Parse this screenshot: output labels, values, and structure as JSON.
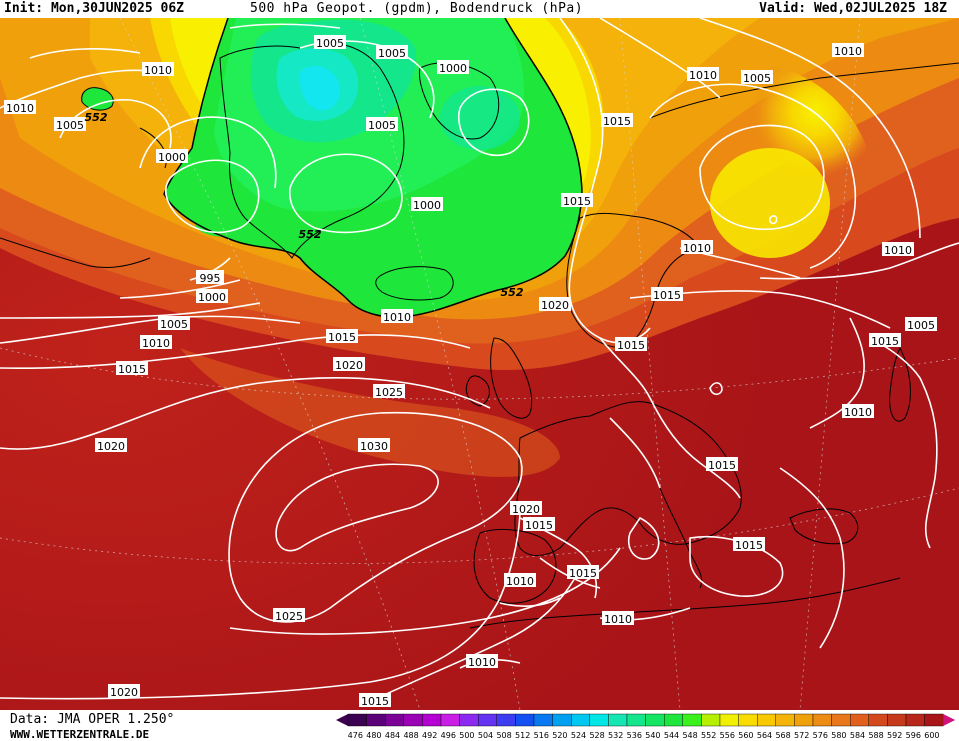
{
  "header": {
    "init": "Init: Mon,30JUN2025 06Z",
    "title": "500 hPa Geopot. (gpdm), Bodendruck (hPa)",
    "valid": "Valid: Wed,02JUL2025 18Z"
  },
  "footer": {
    "data_source": "Data: JMA OPER 1.250°",
    "website": "WWW.WETTERZENTRALE.DE"
  },
  "colors": {
    "dark_red": "#a81418",
    "red": "#c62c1c",
    "red_orange": "#d84a1e",
    "orange": "#ec8a12",
    "yellow_orange": "#f4b20a",
    "yellow": "#f8e800",
    "green": "#1ee63a",
    "green_light": "#22ee6a",
    "teal": "#14e8c4",
    "cyan": "#14e6f0",
    "isobar": "#ffffff",
    "coastline": "#000000"
  },
  "color_scale": {
    "labels": [
      "476",
      "480",
      "484",
      "488",
      "492",
      "496",
      "500",
      "504",
      "508",
      "512",
      "516",
      "520",
      "524",
      "528",
      "532",
      "536",
      "540",
      "544",
      "548",
      "552",
      "556",
      "560",
      "564",
      "568",
      "572",
      "576",
      "580",
      "584",
      "588",
      "592",
      "596",
      "600"
    ],
    "colors": [
      "#3c0050",
      "#5a0078",
      "#7a0096",
      "#9a00b4",
      "#b400d2",
      "#c81ee6",
      "#8c28f0",
      "#6432f0",
      "#3c3cf0",
      "#1450f0",
      "#0a78f0",
      "#00a0f0",
      "#00c8f0",
      "#00e6e6",
      "#14e6b4",
      "#14e68c",
      "#14e664",
      "#1ee63c",
      "#3cf01e",
      "#b4f000",
      "#f0f000",
      "#f8dc00",
      "#f8c800",
      "#f4b40a",
      "#f0a00a",
      "#ec8c14",
      "#e8761a",
      "#e0601e",
      "#d44a1e",
      "#c63a1c",
      "#b8281a",
      "#a81418"
    ]
  },
  "isobar_labels": [
    "1010",
    "1010",
    "1005",
    "1005",
    "1000",
    "1005",
    "1000",
    "1015",
    "1010",
    "1005",
    "995",
    "1000",
    "1005",
    "1010",
    "1015",
    "1000",
    "1010",
    "1020",
    "1015",
    "1025",
    "1015",
    "1030",
    "1020",
    "1020",
    "1015",
    "1015",
    "1005",
    "1010",
    "1010",
    "1010",
    "1010",
    "1015",
    "1015",
    "1015",
    "1015",
    "1015",
    "1010",
    "1020",
    "1010",
    "1025",
    "1020",
    "1015",
    "1010",
    "1005"
  ],
  "height_labels": [
    "552",
    "552",
    "552"
  ]
}
